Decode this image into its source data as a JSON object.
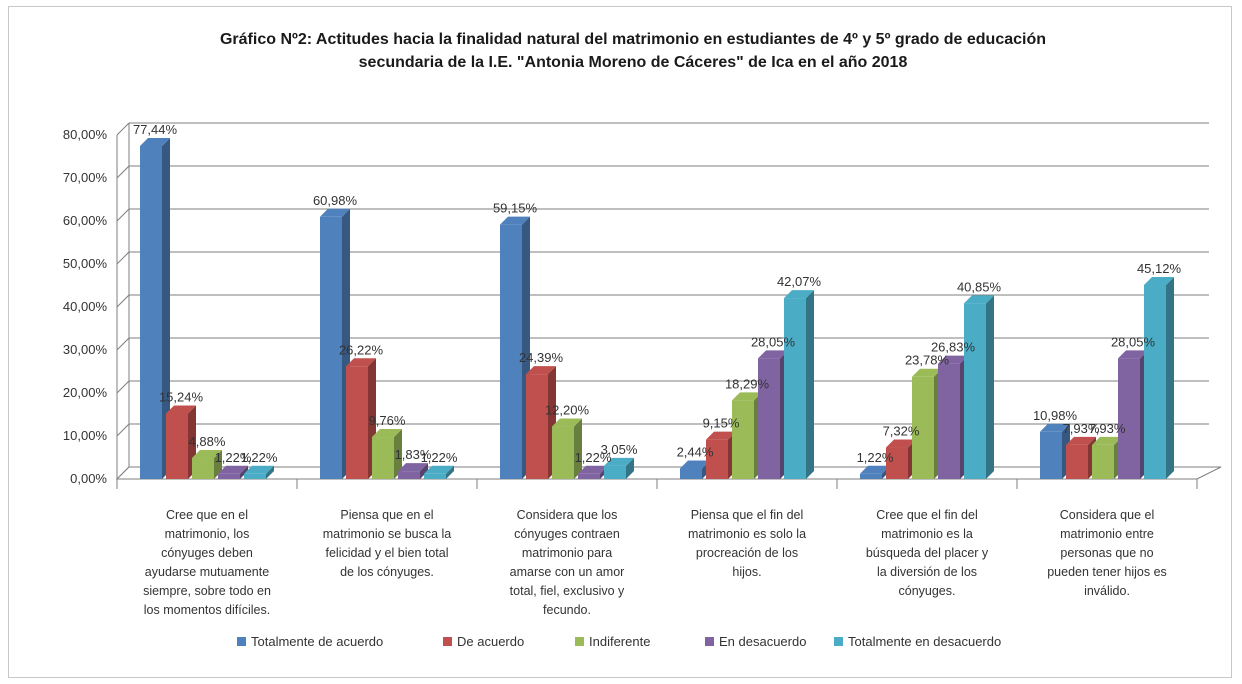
{
  "chart_data": {
    "type": "bar",
    "title": "Gráfico Nº2: Actitudes hacia la finalidad natural del matrimonio en estudiantes de 4º y 5º grado de educación secundaria de la I.E. \"Antonia Moreno de Cáceres\" de Ica en el año 2018",
    "title_lines": [
      "Gráfico Nº2: Actitudes hacia la finalidad natural del matrimonio en estudiantes de 4º y 5º grado de educación",
      "secundaria de la I.E. \"Antonia Moreno de Cáceres\" de Ica  en el año 2018"
    ],
    "ylim": [
      0,
      80
    ],
    "y_ticks": [
      0,
      10,
      20,
      30,
      40,
      50,
      60,
      70,
      80
    ],
    "y_tick_labels": [
      "0,00%",
      "10,00%",
      "20,00%",
      "30,00%",
      "40,00%",
      "50,00%",
      "60,00%",
      "70,00%",
      "80,00%"
    ],
    "grid": true,
    "legend_position": "bottom",
    "categories": [
      [
        "Cree que en el",
        "matrimonio, los",
        "cónyuges deben",
        "ayudarse mutuamente",
        "siempre, sobre todo en",
        "los momentos difíciles."
      ],
      [
        "Piensa que en el",
        "matrimonio se busca la",
        "felicidad y el bien total",
        "de los cónyuges."
      ],
      [
        "Considera que los",
        "cónyuges contraen",
        "matrimonio para",
        "amarse con un amor",
        "total, fiel, exclusivo y",
        "fecundo."
      ],
      [
        "Piensa que el fin del",
        "matrimonio es solo la",
        "procreación de los",
        "hijos."
      ],
      [
        "Cree que el fin del",
        "matrimonio es la",
        "búsqueda del placer y",
        "la diversión de los",
        "cónyuges."
      ],
      [
        "Considera que el",
        "matrimonio entre",
        "personas que no",
        "pueden tener hijos es",
        "inválido."
      ]
    ],
    "series": [
      {
        "name": "Totalmente de acuerdo",
        "color": "#4f81bd",
        "values": [
          77.44,
          60.98,
          59.15,
          2.44,
          1.22,
          10.98
        ],
        "labels": [
          "77,44%",
          "60,98%",
          "59,15%",
          "2,44%",
          "1,22%",
          "10,98%"
        ]
      },
      {
        "name": "De acuerdo",
        "color": "#c0504d",
        "values": [
          15.24,
          26.22,
          24.39,
          9.15,
          7.32,
          7.93
        ],
        "labels": [
          "15,24%",
          "26,22%",
          "24,39%",
          "9,15%",
          "7,32%",
          "7,93%"
        ]
      },
      {
        "name": "Indiferente",
        "color": "#9bbb59",
        "values": [
          4.88,
          9.76,
          12.2,
          18.29,
          23.78,
          7.93
        ],
        "labels": [
          "4,88%",
          "9,76%",
          "12,20%",
          "18,29%",
          "23,78%",
          "7,93%"
        ]
      },
      {
        "name": "En desacuerdo",
        "color": "#8064a2",
        "values": [
          1.22,
          1.83,
          1.22,
          28.05,
          26.83,
          28.05
        ],
        "labels": [
          "1,22%",
          "1,83%",
          "1,22%",
          "28,05%",
          "26,83%",
          "28,05%"
        ]
      },
      {
        "name": "Totalmente en desacuerdo",
        "color": "#4bacc6",
        "values": [
          1.22,
          1.22,
          3.05,
          42.07,
          40.85,
          45.12
        ],
        "labels": [
          "1,22%",
          "1,22%",
          "3,05%",
          "42,07%",
          "40,85%",
          "45,12%"
        ]
      }
    ]
  }
}
